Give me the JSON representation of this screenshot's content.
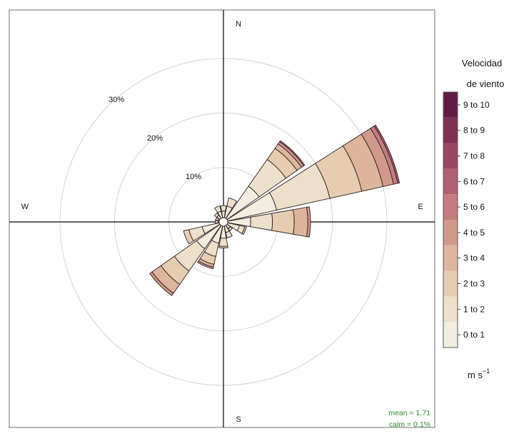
{
  "chart_data": {
    "type": "windrose",
    "directions_deg": [
      0,
      22.5,
      45,
      67.5,
      90,
      112.5,
      135,
      157.5,
      180,
      202.5,
      225,
      247.5,
      270,
      292.5,
      315,
      337.5
    ],
    "compass_labels": {
      "N": "N",
      "E": "E",
      "S": "S",
      "W": "W"
    },
    "radial_gridlines_pct": [
      10,
      20,
      30
    ],
    "radial_labels": [
      "10%",
      "20%",
      "30%"
    ],
    "rmax_pct": 38,
    "legend": {
      "title_line1": "Velocidad",
      "title_line2": "de viento",
      "unit_base": "m s",
      "unit_exp": "−1",
      "bins": [
        "0 to 1",
        "1 to 2",
        "2 to 3",
        "3 to 4",
        "4 to 5",
        "5 to 6",
        "6 to 7",
        "7 to 8",
        "8 to 9",
        "9 to 10"
      ],
      "colors": [
        "#f3ede0",
        "#ede0c9",
        "#e6cdb1",
        "#ddb59d",
        "#d1998c",
        "#c37d80",
        "#b06171",
        "#974863",
        "#7b3054",
        "#5e1c42"
      ]
    },
    "series": [
      {
        "direction": 0,
        "values": [
          2.0,
          1.0
        ]
      },
      {
        "direction": 22.5,
        "values": [
          3.0,
          1.5
        ]
      },
      {
        "direction": 45,
        "values": [
          8.0,
          6.0,
          2.5,
          1.0,
          0.5,
          0.2
        ]
      },
      {
        "direction": 67.5,
        "values": [
          10.0,
          10.0,
          6.0,
          4.0,
          2.0,
          0.8,
          0.3
        ]
      },
      {
        "direction": 90,
        "values": [
          5.0,
          4.0,
          4.0,
          2.5,
          0.5
        ]
      },
      {
        "direction": 112.5,
        "values": [
          3.0,
          1.0,
          0.3
        ]
      },
      {
        "direction": 135,
        "values": [
          1.5,
          0.5
        ]
      },
      {
        "direction": 157.5,
        "values": [
          2.0,
          1.0
        ]
      },
      {
        "direction": 180,
        "values": [
          3.0,
          1.5,
          0.3
        ]
      },
      {
        "direction": 202.5,
        "values": [
          4.0,
          2.5,
          1.5,
          0.5,
          0.3
        ]
      },
      {
        "direction": 225,
        "values": [
          6.0,
          5.0,
          3.0,
          2.0,
          0.5
        ]
      },
      {
        "direction": 247.5,
        "values": [
          4.0,
          2.5,
          1.0
        ]
      },
      {
        "direction": 270,
        "values": [
          1.0,
          0.5
        ]
      },
      {
        "direction": 292.5,
        "values": [
          1.0,
          0.5
        ]
      },
      {
        "direction": 315,
        "values": [
          1.5,
          0.5
        ]
      },
      {
        "direction": 337.5,
        "values": [
          2.0,
          1.0
        ]
      }
    ],
    "stats": {
      "mean": "mean = 1.71",
      "calm": "calm = 0.1%",
      "color": "#2e8b2e"
    }
  }
}
